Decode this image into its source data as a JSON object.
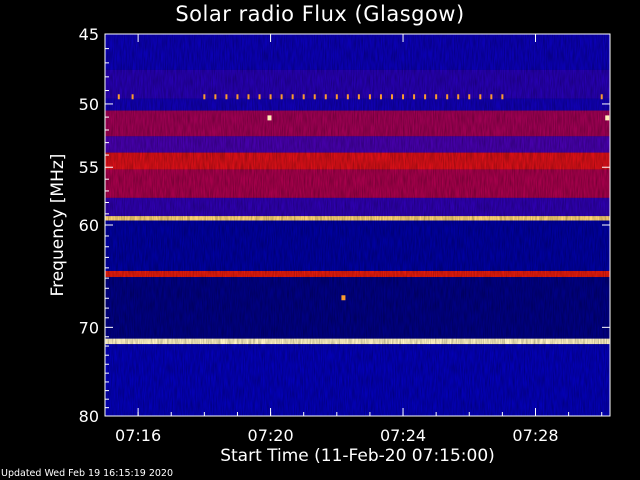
{
  "chart_data": {
    "type": "heatmap",
    "title": "Solar radio Flux (Glasgow)",
    "xlabel": "Start Time (11-Feb-20 07:15:00)",
    "ylabel": "Frequency [MHz]",
    "xlim": [
      "07:15:00",
      "07:30:15"
    ],
    "ylim": [
      45,
      80
    ],
    "y_scale": "log",
    "x_ticks": [
      "07:16",
      "07:20",
      "07:24",
      "07:28"
    ],
    "y_ticks": [
      45,
      50,
      55,
      60,
      70,
      80
    ],
    "colormap": "black-blue-red-yellow-white",
    "bands": [
      {
        "f_from": 45.0,
        "f_to": 47.5,
        "level": 0.28
      },
      {
        "f_from": 47.5,
        "f_to": 49.6,
        "level": 0.36
      },
      {
        "f_from": 49.6,
        "f_to": 50.5,
        "level": 0.3
      },
      {
        "f_from": 50.5,
        "f_to": 52.5,
        "level": 0.55
      },
      {
        "f_from": 52.5,
        "f_to": 53.8,
        "level": 0.45
      },
      {
        "f_from": 53.8,
        "f_to": 55.2,
        "level": 0.66
      },
      {
        "f_from": 55.2,
        "f_to": 57.6,
        "level": 0.56
      },
      {
        "f_from": 57.6,
        "f_to": 59.2,
        "level": 0.38
      },
      {
        "f_from": 59.2,
        "f_to": 59.6,
        "level": 0.92
      },
      {
        "f_from": 59.6,
        "f_to": 64.3,
        "level": 0.22
      },
      {
        "f_from": 64.3,
        "f_to": 64.9,
        "level": 0.7
      },
      {
        "f_from": 64.9,
        "f_to": 71.2,
        "level": 0.18
      },
      {
        "f_from": 71.2,
        "f_to": 71.8,
        "level": 0.98
      },
      {
        "f_from": 71.8,
        "f_to": 80.0,
        "level": 0.26
      }
    ],
    "interference_freq": 49.5,
    "interference_times": [
      "07:15:25",
      "07:15:50",
      "07:18:00",
      "07:18:20",
      "07:18:40",
      "07:19:00",
      "07:19:20",
      "07:19:40",
      "07:20:00",
      "07:20:20",
      "07:20:40",
      "07:21:00",
      "07:21:20",
      "07:21:40",
      "07:22:00",
      "07:22:20",
      "07:22:40",
      "07:23:00",
      "07:23:20",
      "07:23:40",
      "07:24:00",
      "07:24:20",
      "07:24:40",
      "07:25:00",
      "07:25:20",
      "07:25:40",
      "07:26:00",
      "07:26:20",
      "07:26:40",
      "07:27:00",
      "07:30:00"
    ],
    "point_sources": [
      {
        "time": "07:19:58",
        "freq": 51.1,
        "level": 0.97
      },
      {
        "time": "07:22:12",
        "freq": 67.0,
        "level": 0.85
      },
      {
        "time": "07:30:10",
        "freq": 51.1,
        "level": 0.97
      }
    ]
  },
  "footer": {
    "updated": "Updated Wed Feb 19 16:15:19 2020"
  }
}
